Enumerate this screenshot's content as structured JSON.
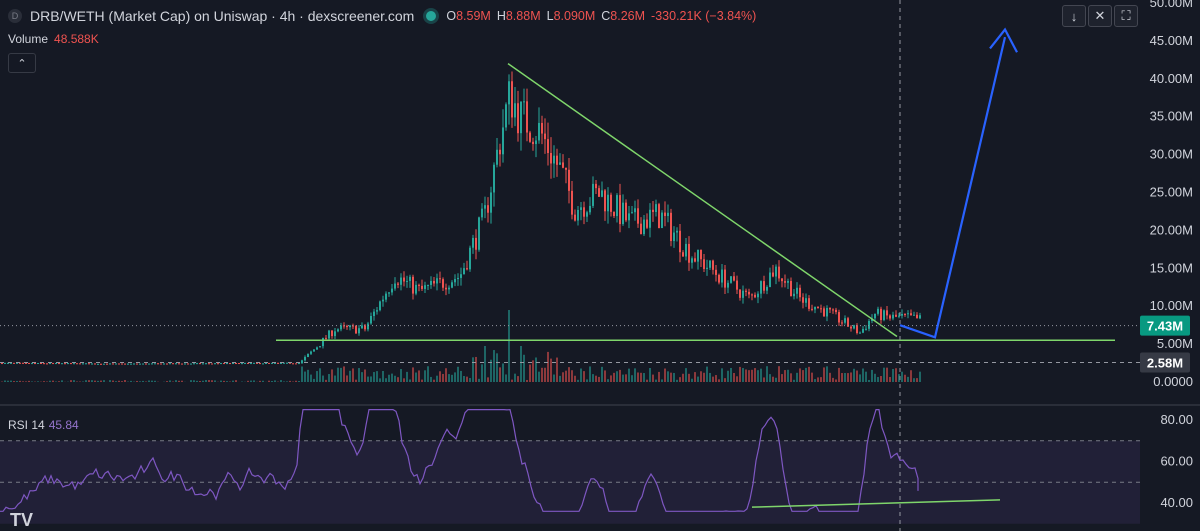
{
  "header": {
    "symbol_icon": "D",
    "title": "DRB/WETH (Market Cap) on Uniswap · 4h · dexscreener.com",
    "ohlc": {
      "o_label": "O",
      "o": "8.59M",
      "h_label": "H",
      "h": "8.88M",
      "l_label": "L",
      "l": "8.090M",
      "c_label": "C",
      "c": "8.26M",
      "change": "-330.21K (−3.84%)"
    }
  },
  "volume": {
    "label": "Volume",
    "value": "48.588K"
  },
  "rsi": {
    "label": "RSI 14",
    "value": "45.84"
  },
  "toolbar": {
    "down_icon": "↓",
    "collapse_icon": "✕",
    "fullscreen_icon": "⛶",
    "up_icon": "⌃"
  },
  "logo": "TV",
  "colors": {
    "up": "#26a69a",
    "down": "#ef5350",
    "trend": "#7fd66b",
    "arrow": "#2962ff",
    "rsi": "#7e57c2",
    "bg": "#151924"
  },
  "chart_data": [
    {
      "type": "candlestick",
      "title": "DRB/WETH (Market Cap) on Uniswap · 4h",
      "ylim": [
        0,
        50000000
      ],
      "y_ticks": [
        "50.00M",
        "45.00M",
        "40.00M",
        "35.00M",
        "30.00M",
        "25.00M",
        "20.00M",
        "15.00M",
        "10.00M",
        "5.00M",
        "0.0000"
      ],
      "price_labels": [
        {
          "value": 7430000,
          "text": "7.43M"
        },
        {
          "value": 2580000,
          "text": "2.58M"
        }
      ],
      "key_points": [
        {
          "phase": "flat start",
          "value": 2500000
        },
        {
          "phase": "first rise",
          "value": 14000000
        },
        {
          "phase": "peak",
          "value": 42000000
        },
        {
          "phase": "local high",
          "value": 16000000
        },
        {
          "phase": "low",
          "value": 6000000
        },
        {
          "phase": "last close",
          "value": 8260000
        }
      ],
      "annotations": [
        "descending trendline from 42M peak",
        "horizontal support near 5.5M",
        "projected up-arrow to ~46M"
      ]
    },
    {
      "type": "line",
      "title": "RSI 14",
      "ylim": [
        35,
        85
      ],
      "y_ticks": [
        "80.00",
        "60.00",
        "40.00"
      ],
      "levels": [
        70,
        50
      ],
      "last": 45.84
    }
  ]
}
